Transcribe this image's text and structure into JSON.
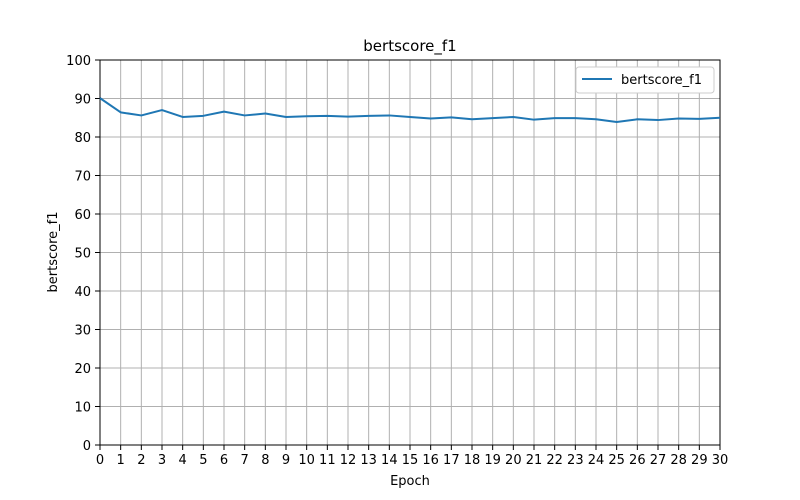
{
  "chart_data": {
    "type": "line",
    "title": "bertscore_f1",
    "xlabel": "Epoch",
    "ylabel": "bertscore_f1",
    "xlim": [
      0,
      30
    ],
    "ylim": [
      0,
      100
    ],
    "xticks": [
      0,
      1,
      2,
      3,
      4,
      5,
      6,
      7,
      8,
      9,
      10,
      11,
      12,
      13,
      14,
      15,
      16,
      17,
      18,
      19,
      20,
      21,
      22,
      23,
      24,
      25,
      26,
      27,
      28,
      29,
      30
    ],
    "yticks": [
      0,
      10,
      20,
      30,
      40,
      50,
      60,
      70,
      80,
      90,
      100
    ],
    "grid": true,
    "legend_position": "top-right",
    "series": [
      {
        "name": "bertscore_f1",
        "color": "#1f77b4",
        "x": [
          0,
          1,
          2,
          3,
          4,
          5,
          6,
          7,
          8,
          9,
          10,
          11,
          12,
          13,
          14,
          15,
          16,
          17,
          18,
          19,
          20,
          21,
          22,
          23,
          24,
          25,
          26,
          27,
          28,
          29,
          30
        ],
        "y": [
          90.1,
          86.4,
          85.6,
          87.0,
          85.2,
          85.5,
          86.6,
          85.6,
          86.1,
          85.2,
          85.4,
          85.5,
          85.3,
          85.5,
          85.6,
          85.2,
          84.8,
          85.1,
          84.6,
          84.9,
          85.2,
          84.5,
          84.9,
          84.9,
          84.6,
          83.9,
          84.6,
          84.4,
          84.8,
          84.7,
          85.0
        ]
      }
    ]
  }
}
